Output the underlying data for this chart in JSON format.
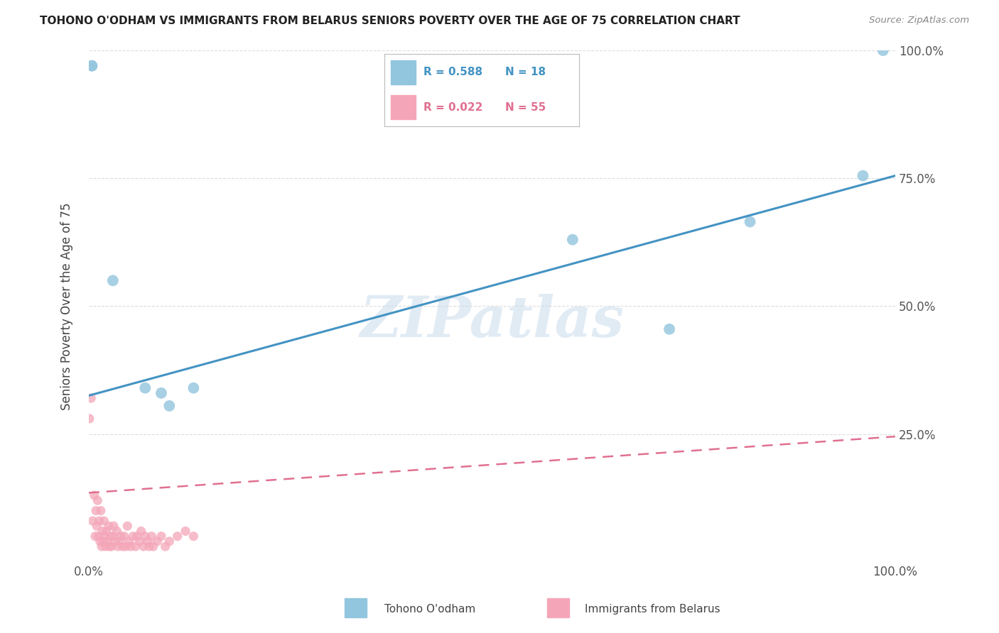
{
  "title": "TOHONO O'ODHAM VS IMMIGRANTS FROM BELARUS SENIORS POVERTY OVER THE AGE OF 75 CORRELATION CHART",
  "source": "Source: ZipAtlas.com",
  "ylabel": "Seniors Poverty Over the Age of 75",
  "xlim": [
    0,
    1
  ],
  "ylim": [
    0,
    1
  ],
  "watermark": "ZIPatlas",
  "blue_color": "#92c5de",
  "pink_color": "#f4a6b8",
  "blue_line_color": "#4393c3",
  "pink_line_color": "#e07090",
  "grid_color": "#dddddd",
  "tohono_x": [
    0.004,
    0.004,
    0.03,
    0.07,
    0.09,
    0.1,
    0.13,
    0.6,
    0.72,
    0.82,
    0.96,
    0.985
  ],
  "tohono_y": [
    0.97,
    0.97,
    0.55,
    0.34,
    0.33,
    0.305,
    0.34,
    0.63,
    0.455,
    0.665,
    0.755,
    1.0
  ],
  "belarus_x": [
    0.001,
    0.003,
    0.005,
    0.007,
    0.008,
    0.009,
    0.01,
    0.011,
    0.012,
    0.013,
    0.014,
    0.015,
    0.016,
    0.017,
    0.018,
    0.019,
    0.02,
    0.021,
    0.022,
    0.023,
    0.025,
    0.026,
    0.027,
    0.028,
    0.03,
    0.031,
    0.033,
    0.035,
    0.036,
    0.038,
    0.04,
    0.042,
    0.044,
    0.046,
    0.048,
    0.05,
    0.052,
    0.055,
    0.058,
    0.06,
    0.063,
    0.065,
    0.068,
    0.07,
    0.073,
    0.075,
    0.078,
    0.08,
    0.085,
    0.09,
    0.095,
    0.1,
    0.11,
    0.12,
    0.13
  ],
  "belarus_y": [
    0.28,
    0.32,
    0.08,
    0.13,
    0.05,
    0.1,
    0.07,
    0.12,
    0.05,
    0.08,
    0.04,
    0.1,
    0.03,
    0.06,
    0.04,
    0.08,
    0.05,
    0.03,
    0.06,
    0.04,
    0.07,
    0.03,
    0.05,
    0.03,
    0.05,
    0.07,
    0.04,
    0.06,
    0.03,
    0.04,
    0.05,
    0.03,
    0.05,
    0.03,
    0.07,
    0.04,
    0.03,
    0.05,
    0.03,
    0.05,
    0.04,
    0.06,
    0.03,
    0.05,
    0.04,
    0.03,
    0.05,
    0.03,
    0.04,
    0.05,
    0.03,
    0.04,
    0.05,
    0.06,
    0.05
  ],
  "blue_line_x0": 0.0,
  "blue_line_y0": 0.325,
  "blue_line_x1": 1.0,
  "blue_line_y1": 0.755,
  "pink_line_x0": 0.0,
  "pink_line_y0": 0.135,
  "pink_line_x1": 1.0,
  "pink_line_y1": 0.245
}
